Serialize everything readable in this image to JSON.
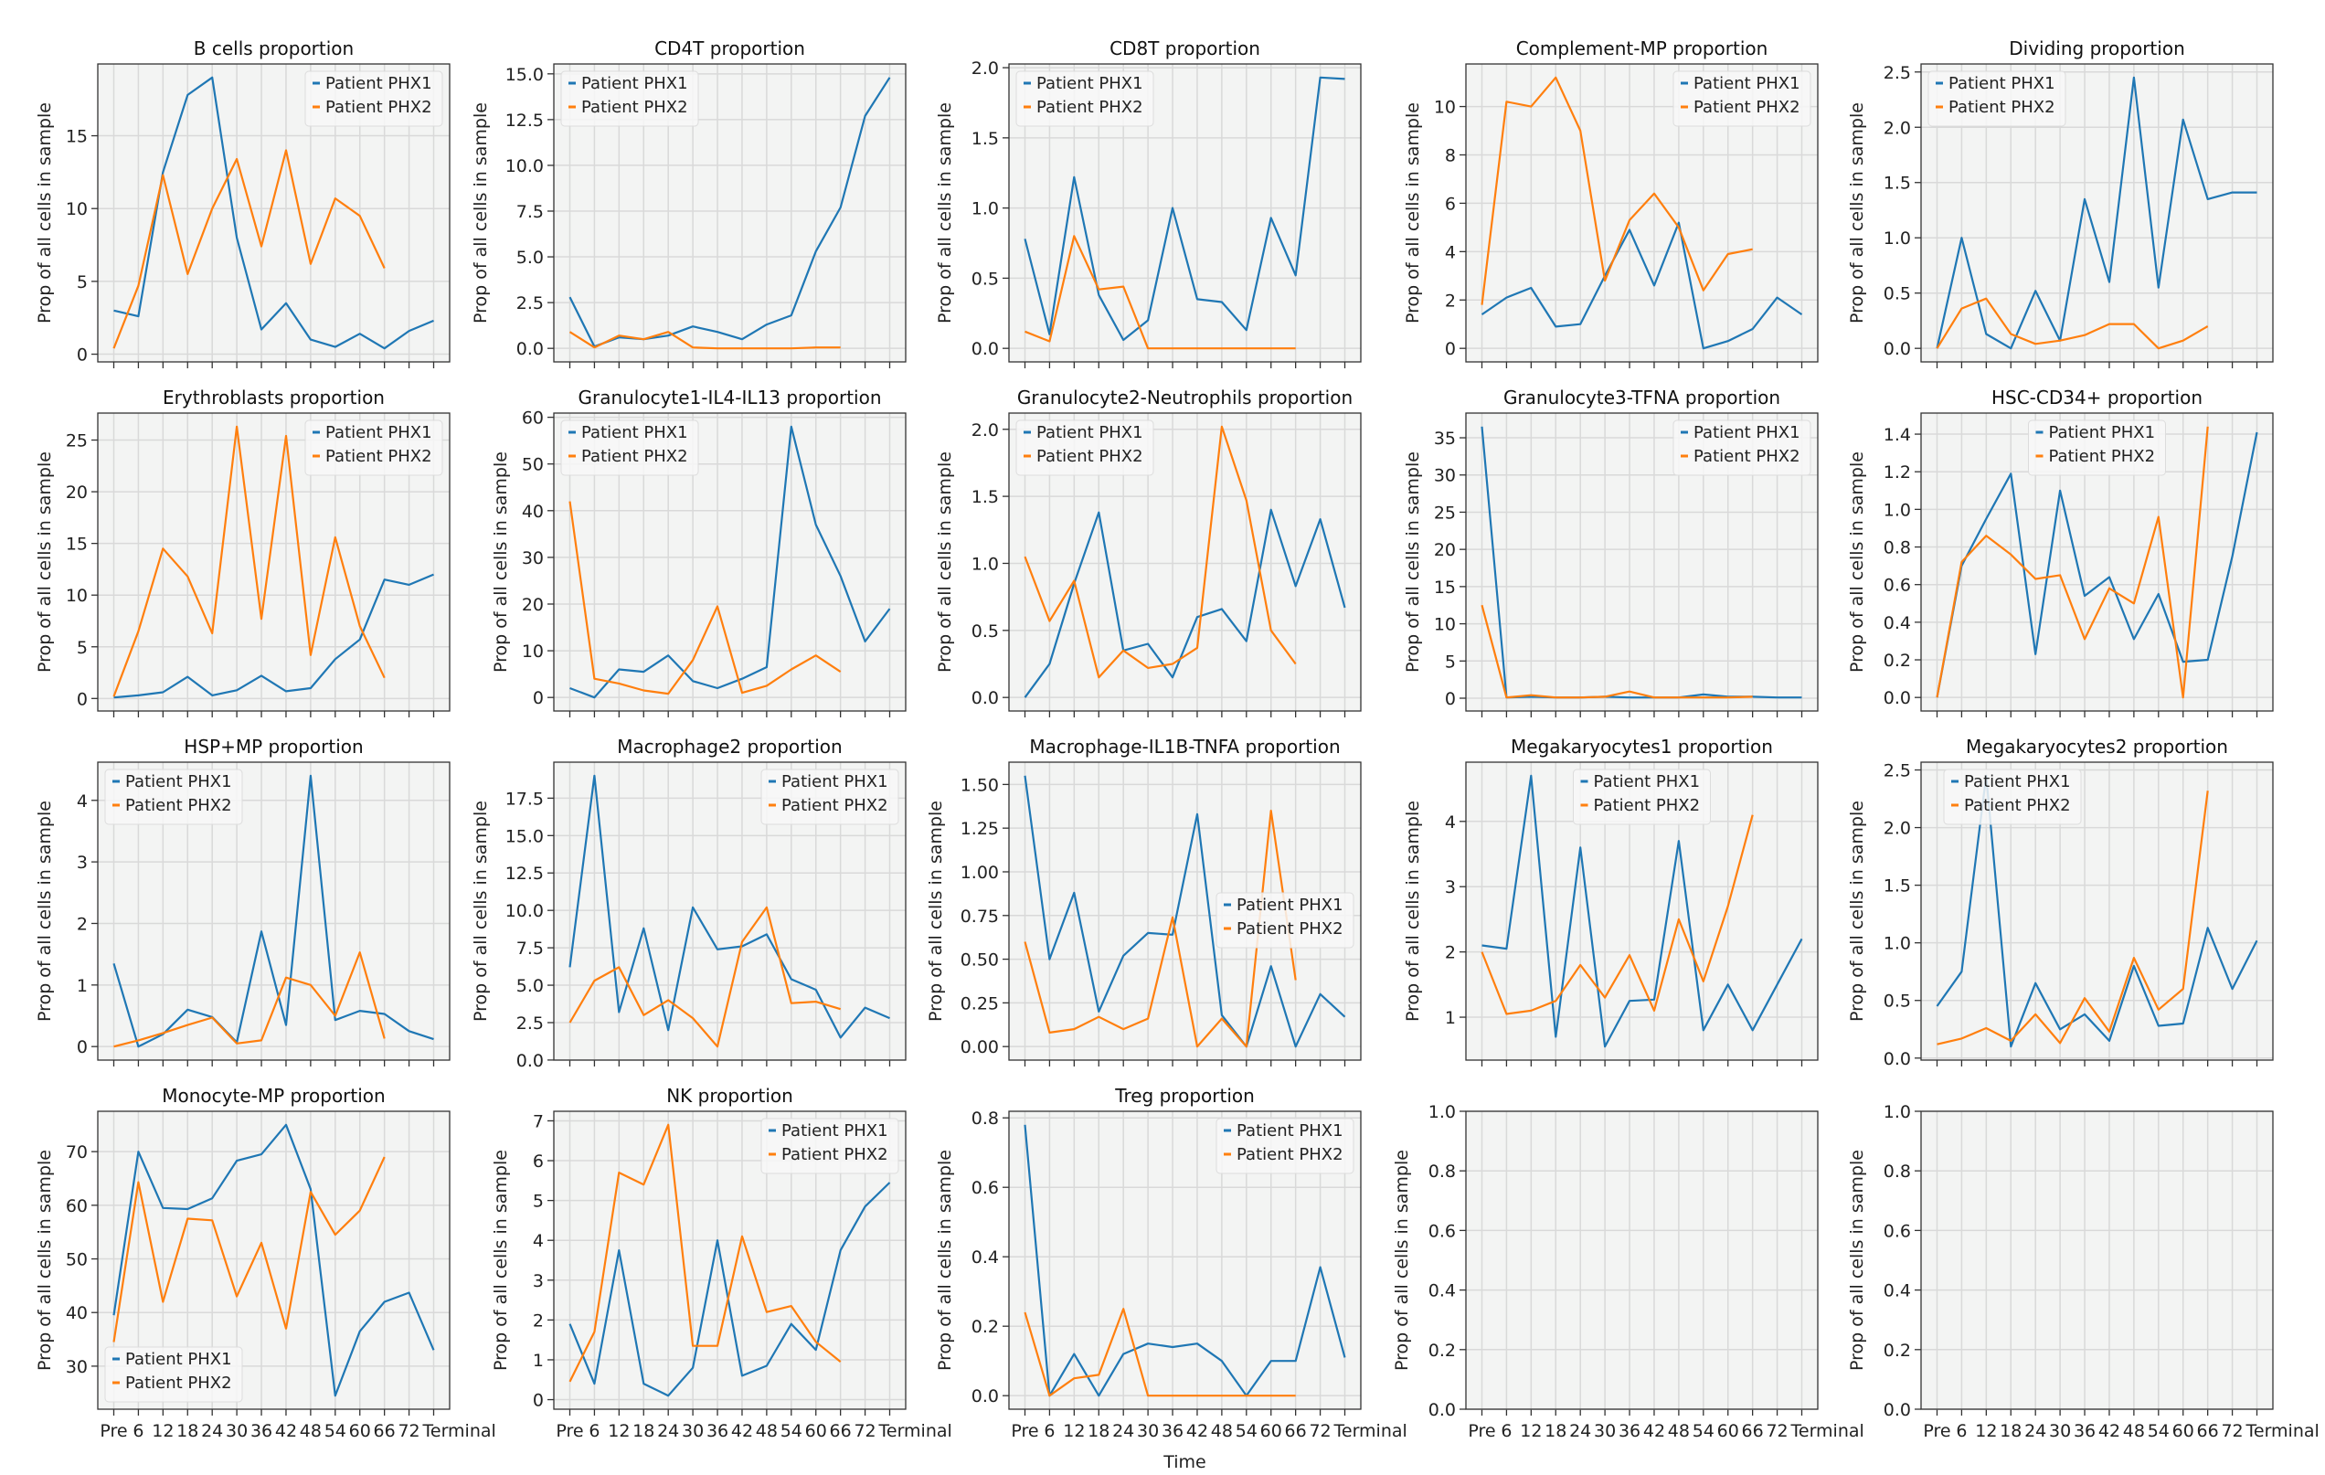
{
  "figure": {
    "x_categories": [
      "Pre",
      "6",
      "12",
      "18",
      "24",
      "30",
      "36",
      "42",
      "48",
      "54",
      "60",
      "66",
      "72",
      "Terminal"
    ],
    "xlabel": "Time",
    "ylabel": "Prop of all cells in sample",
    "series_names": [
      "Patient PHX1",
      "Patient PHX2"
    ],
    "colors": {
      "PHX1": "#1f77b4",
      "PHX2": "#ff7f0e",
      "axes_bg": "#f3f4f3",
      "grid": "#d9d9d9"
    }
  },
  "chart_data": [
    {
      "type": "line",
      "title": "B cells proportion",
      "yticks": [
        0,
        5,
        10,
        15
      ],
      "legend": "upper-right",
      "series": [
        {
          "name": "Patient PHX1",
          "values": [
            3.0,
            2.6,
            12.5,
            17.8,
            19.0,
            8.0,
            1.7,
            3.5,
            1.0,
            0.5,
            1.4,
            0.4,
            1.6,
            2.3
          ]
        },
        {
          "name": "Patient PHX2",
          "values": [
            0.4,
            4.7,
            12.3,
            5.5,
            10.0,
            13.4,
            7.4,
            14.0,
            6.2,
            10.7,
            9.5,
            5.9
          ]
        }
      ]
    },
    {
      "type": "line",
      "title": "CD4T proportion",
      "yticks": [
        "0.0",
        "2.5",
        "5.0",
        "7.5",
        "10.0",
        "12.5",
        "15.0"
      ],
      "legend": "upper-left",
      "series": [
        {
          "name": "Patient PHX1",
          "values": [
            2.8,
            0.1,
            0.6,
            0.5,
            0.7,
            1.2,
            0.9,
            0.5,
            1.3,
            1.8,
            5.3,
            7.7,
            12.7,
            14.8
          ]
        },
        {
          "name": "Patient PHX2",
          "values": [
            0.9,
            0.05,
            0.7,
            0.5,
            0.9,
            0.05,
            0.0,
            0.0,
            0.0,
            0.0,
            0.05,
            0.05
          ]
        }
      ]
    },
    {
      "type": "line",
      "title": "CD8T proportion",
      "yticks": [
        "0.0",
        "0.5",
        "1.0",
        "1.5",
        "2.0"
      ],
      "legend": "upper-left",
      "series": [
        {
          "name": "Patient PHX1",
          "values": [
            0.78,
            0.1,
            1.22,
            0.38,
            0.06,
            0.2,
            1.0,
            0.35,
            0.33,
            0.13,
            0.93,
            0.52,
            1.93,
            1.92
          ]
        },
        {
          "name": "Patient PHX2",
          "values": [
            0.12,
            0.05,
            0.8,
            0.42,
            0.44,
            0,
            0,
            0,
            0,
            0,
            0,
            0
          ]
        }
      ]
    },
    {
      "type": "line",
      "title": "Complement-MP proportion",
      "yticks": [
        0,
        2,
        4,
        6,
        8,
        10
      ],
      "legend": "upper-right",
      "series": [
        {
          "name": "Patient PHX1",
          "values": [
            1.4,
            2.1,
            2.5,
            0.9,
            1.0,
            3.0,
            4.9,
            2.6,
            5.2,
            0.0,
            0.3,
            0.8,
            2.1,
            1.4
          ]
        },
        {
          "name": "Patient PHX2",
          "values": [
            1.8,
            10.2,
            10.0,
            11.2,
            9.0,
            2.8,
            5.3,
            6.4,
            5.0,
            2.4,
            3.9,
            4.1
          ]
        }
      ]
    },
    {
      "type": "line",
      "title": "Dividing proportion",
      "yticks": [
        "0.0",
        "0.5",
        "1.0",
        "1.5",
        "2.0",
        "2.5"
      ],
      "legend": "upper-left",
      "series": [
        {
          "name": "Patient PHX1",
          "values": [
            0.0,
            1.0,
            0.13,
            0.0,
            0.52,
            0.07,
            1.35,
            0.6,
            2.45,
            0.55,
            2.07,
            1.35,
            1.41,
            1.41
          ]
        },
        {
          "name": "Patient PHX2",
          "values": [
            0.0,
            0.36,
            0.45,
            0.13,
            0.04,
            0.07,
            0.12,
            0.22,
            0.22,
            0.0,
            0.07,
            0.2
          ]
        }
      ]
    },
    {
      "type": "line",
      "title": "Erythroblasts proportion",
      "yticks": [
        0,
        5,
        10,
        15,
        20,
        25
      ],
      "legend": "upper-right",
      "series": [
        {
          "name": "Patient PHX1",
          "values": [
            0.1,
            0.3,
            0.6,
            2.1,
            0.3,
            0.8,
            2.2,
            0.7,
            1.0,
            3.8,
            5.7,
            11.5,
            11.0,
            12.0
          ]
        },
        {
          "name": "Patient PHX2",
          "values": [
            0.2,
            6.5,
            14.5,
            11.8,
            6.3,
            26.3,
            7.7,
            25.4,
            4.2,
            15.6,
            7.0,
            2.0
          ]
        }
      ]
    },
    {
      "type": "line",
      "title": "Granulocyte1-IL4-IL13 proportion",
      "yticks": [
        0,
        10,
        20,
        30,
        40,
        50,
        60
      ],
      "legend": "upper-left",
      "series": [
        {
          "name": "Patient PHX1",
          "values": [
            2,
            0,
            6,
            5.5,
            9,
            3.5,
            2,
            4,
            6.5,
            58,
            37,
            26,
            12,
            19
          ]
        },
        {
          "name": "Patient PHX2",
          "values": [
            42,
            4,
            3,
            1.5,
            0.8,
            8,
            19.5,
            1,
            2.5,
            6,
            9,
            5.5
          ]
        }
      ]
    },
    {
      "type": "line",
      "title": "Granulocyte2-Neutrophils proportion",
      "yticks": [
        "0.0",
        "0.5",
        "1.0",
        "1.5",
        "2.0"
      ],
      "legend": "upper-left",
      "series": [
        {
          "name": "Patient PHX1",
          "values": [
            0.0,
            0.25,
            0.85,
            1.38,
            0.35,
            0.4,
            0.15,
            0.6,
            0.66,
            0.42,
            1.4,
            0.83,
            1.33,
            0.67
          ]
        },
        {
          "name": "Patient PHX2",
          "values": [
            1.05,
            0.57,
            0.87,
            0.15,
            0.35,
            0.22,
            0.25,
            0.37,
            2.02,
            1.47,
            0.5,
            0.25
          ]
        }
      ]
    },
    {
      "type": "line",
      "title": "Granulocyte3-TFNA proportion",
      "yticks": [
        0,
        5,
        10,
        15,
        20,
        25,
        30,
        35
      ],
      "legend": "upper-right",
      "series": [
        {
          "name": "Patient PHX1",
          "values": [
            36.5,
            0.1,
            0.2,
            0.1,
            0.1,
            0.2,
            0.1,
            0.1,
            0.1,
            0.5,
            0.2,
            0.2,
            0.1,
            0.1
          ]
        },
        {
          "name": "Patient PHX2",
          "values": [
            12.5,
            0.1,
            0.4,
            0.1,
            0.1,
            0.2,
            0.9,
            0.1,
            0.1,
            0.1,
            0.1,
            0.2
          ]
        }
      ]
    },
    {
      "type": "line",
      "title": "HSC-CD34+ proportion",
      "yticks": [
        "0.0",
        "0.2",
        "0.4",
        "0.6",
        "0.8",
        "1.0",
        "1.2",
        "1.4"
      ],
      "legend": "upper-center",
      "series": [
        {
          "name": "Patient PHX1",
          "values": [
            0.0,
            0.7,
            0.95,
            1.19,
            0.23,
            1.1,
            0.54,
            0.64,
            0.31,
            0.55,
            0.19,
            0.2,
            0.75,
            1.41
          ]
        },
        {
          "name": "Patient PHX2",
          "values": [
            0.0,
            0.72,
            0.86,
            0.76,
            0.63,
            0.65,
            0.31,
            0.58,
            0.5,
            0.96,
            0.0,
            1.44
          ]
        }
      ]
    },
    {
      "type": "line",
      "title": "HSP+MP proportion",
      "yticks": [
        0,
        1,
        2,
        3,
        4
      ],
      "legend": "upper-left",
      "series": [
        {
          "name": "Patient PHX1",
          "values": [
            1.35,
            0.0,
            0.2,
            0.6,
            0.48,
            0.07,
            1.87,
            0.35,
            4.4,
            0.43,
            0.58,
            0.53,
            0.25,
            0.12
          ]
        },
        {
          "name": "Patient PHX2",
          "values": [
            0.0,
            0.1,
            0.22,
            0.35,
            0.47,
            0.05,
            0.1,
            1.12,
            1.0,
            0.5,
            1.53,
            0.13
          ]
        }
      ]
    },
    {
      "type": "line",
      "title": "Macrophage2 proportion",
      "yticks": [
        "0.0",
        "2.5",
        "5.0",
        "7.5",
        "10.0",
        "12.5",
        "15.0",
        "17.5"
      ],
      "legend": "upper-right",
      "series": [
        {
          "name": "Patient PHX1",
          "values": [
            6.2,
            19.0,
            3.2,
            8.8,
            2.0,
            10.2,
            7.4,
            7.6,
            8.4,
            5.4,
            4.7,
            1.5,
            3.5,
            2.8
          ]
        },
        {
          "name": "Patient PHX2",
          "values": [
            2.5,
            5.3,
            6.2,
            3.0,
            4.0,
            2.8,
            0.9,
            7.9,
            10.2,
            3.8,
            3.9,
            3.4
          ]
        }
      ]
    },
    {
      "type": "line",
      "title": "Macrophage-IL1B-TNFA proportion",
      "yticks": [
        "0.00",
        "0.25",
        "0.50",
        "0.75",
        "1.00",
        "1.25",
        "1.50"
      ],
      "legend": "center-right",
      "series": [
        {
          "name": "Patient PHX1",
          "values": [
            1.55,
            0.5,
            0.88,
            0.2,
            0.52,
            0.65,
            0.64,
            1.33,
            0.18,
            0.0,
            0.46,
            0.0,
            0.3,
            0.17
          ]
        },
        {
          "name": "Patient PHX2",
          "values": [
            0.6,
            0.08,
            0.1,
            0.17,
            0.1,
            0.16,
            0.74,
            0.0,
            0.16,
            0.0,
            1.35,
            0.38
          ]
        }
      ]
    },
    {
      "type": "line",
      "title": "Megakaryocytes1 proportion",
      "yticks": [
        1,
        2,
        3,
        4
      ],
      "legend": "upper-center",
      "series": [
        {
          "name": "Patient PHX1",
          "values": [
            2.1,
            2.05,
            4.7,
            0.7,
            3.6,
            0.55,
            1.25,
            1.27,
            3.7,
            0.8,
            1.5,
            0.8,
            1.5,
            2.2
          ]
        },
        {
          "name": "Patient PHX2",
          "values": [
            2.0,
            1.05,
            1.1,
            1.25,
            1.8,
            1.3,
            1.95,
            1.1,
            2.5,
            1.55,
            2.7,
            4.1
          ]
        }
      ]
    },
    {
      "type": "line",
      "title": "Megakaryocytes2 proportion",
      "yticks": [
        "0.0",
        "0.5",
        "1.0",
        "1.5",
        "2.0",
        "2.5"
      ],
      "legend": "upper-left-inset",
      "series": [
        {
          "name": "Patient PHX1",
          "values": [
            0.45,
            0.75,
            2.45,
            0.1,
            0.65,
            0.25,
            0.38,
            0.15,
            0.8,
            0.28,
            0.3,
            1.13,
            0.6,
            1.02
          ]
        },
        {
          "name": "Patient PHX2",
          "values": [
            0.12,
            0.17,
            0.26,
            0.15,
            0.38,
            0.13,
            0.52,
            0.23,
            0.87,
            0.42,
            0.6,
            2.32
          ]
        }
      ]
    },
    {
      "type": "line",
      "title": "Monocyte-MP proportion",
      "yticks": [
        30,
        40,
        50,
        60,
        70
      ],
      "legend": "lower-left",
      "series": [
        {
          "name": "Patient PHX1",
          "values": [
            39.5,
            70,
            59.5,
            59.3,
            61.3,
            68.3,
            69.5,
            75,
            63,
            24.5,
            36.5,
            42,
            43.7,
            33
          ]
        },
        {
          "name": "Patient PHX2",
          "values": [
            34.5,
            64.3,
            42,
            57.5,
            57.2,
            43,
            53,
            37,
            62.5,
            54.5,
            59,
            69
          ]
        }
      ]
    },
    {
      "type": "line",
      "title": "NK proportion",
      "yticks": [
        0,
        1,
        2,
        3,
        4,
        5,
        6,
        7
      ],
      "legend": "upper-right",
      "series": [
        {
          "name": "Patient PHX1",
          "values": [
            1.9,
            0.4,
            3.75,
            0.4,
            0.1,
            0.8,
            4.0,
            0.6,
            0.85,
            1.9,
            1.25,
            3.75,
            4.85,
            5.45
          ]
        },
        {
          "name": "Patient PHX2",
          "values": [
            0.45,
            1.7,
            5.7,
            5.4,
            6.9,
            1.35,
            1.35,
            4.1,
            2.2,
            2.35,
            1.45,
            0.95
          ]
        }
      ]
    },
    {
      "type": "line",
      "title": "Treg proportion",
      "yticks": [
        "0.0",
        "0.2",
        "0.4",
        "0.6",
        "0.8"
      ],
      "legend": "upper-right",
      "series": [
        {
          "name": "Patient PHX1",
          "values": [
            0.78,
            0.0,
            0.12,
            0.0,
            0.12,
            0.15,
            0.14,
            0.15,
            0.1,
            0.0,
            0.1,
            0.1,
            0.37,
            0.11
          ]
        },
        {
          "name": "Patient PHX2",
          "values": [
            0.24,
            0.0,
            0.05,
            0.06,
            0.25,
            0,
            0,
            0,
            0,
            0,
            0,
            0
          ]
        }
      ]
    },
    {
      "type": "line",
      "title": "",
      "yticks": [
        "0.0",
        "0.2",
        "0.4",
        "0.6",
        "0.8",
        "1.0"
      ],
      "ylim": [
        0,
        1
      ],
      "legend": "none",
      "series": []
    },
    {
      "type": "line",
      "title": "",
      "yticks": [
        "0.0",
        "0.2",
        "0.4",
        "0.6",
        "0.8",
        "1.0"
      ],
      "ylim": [
        0,
        1
      ],
      "legend": "none",
      "series": []
    }
  ]
}
